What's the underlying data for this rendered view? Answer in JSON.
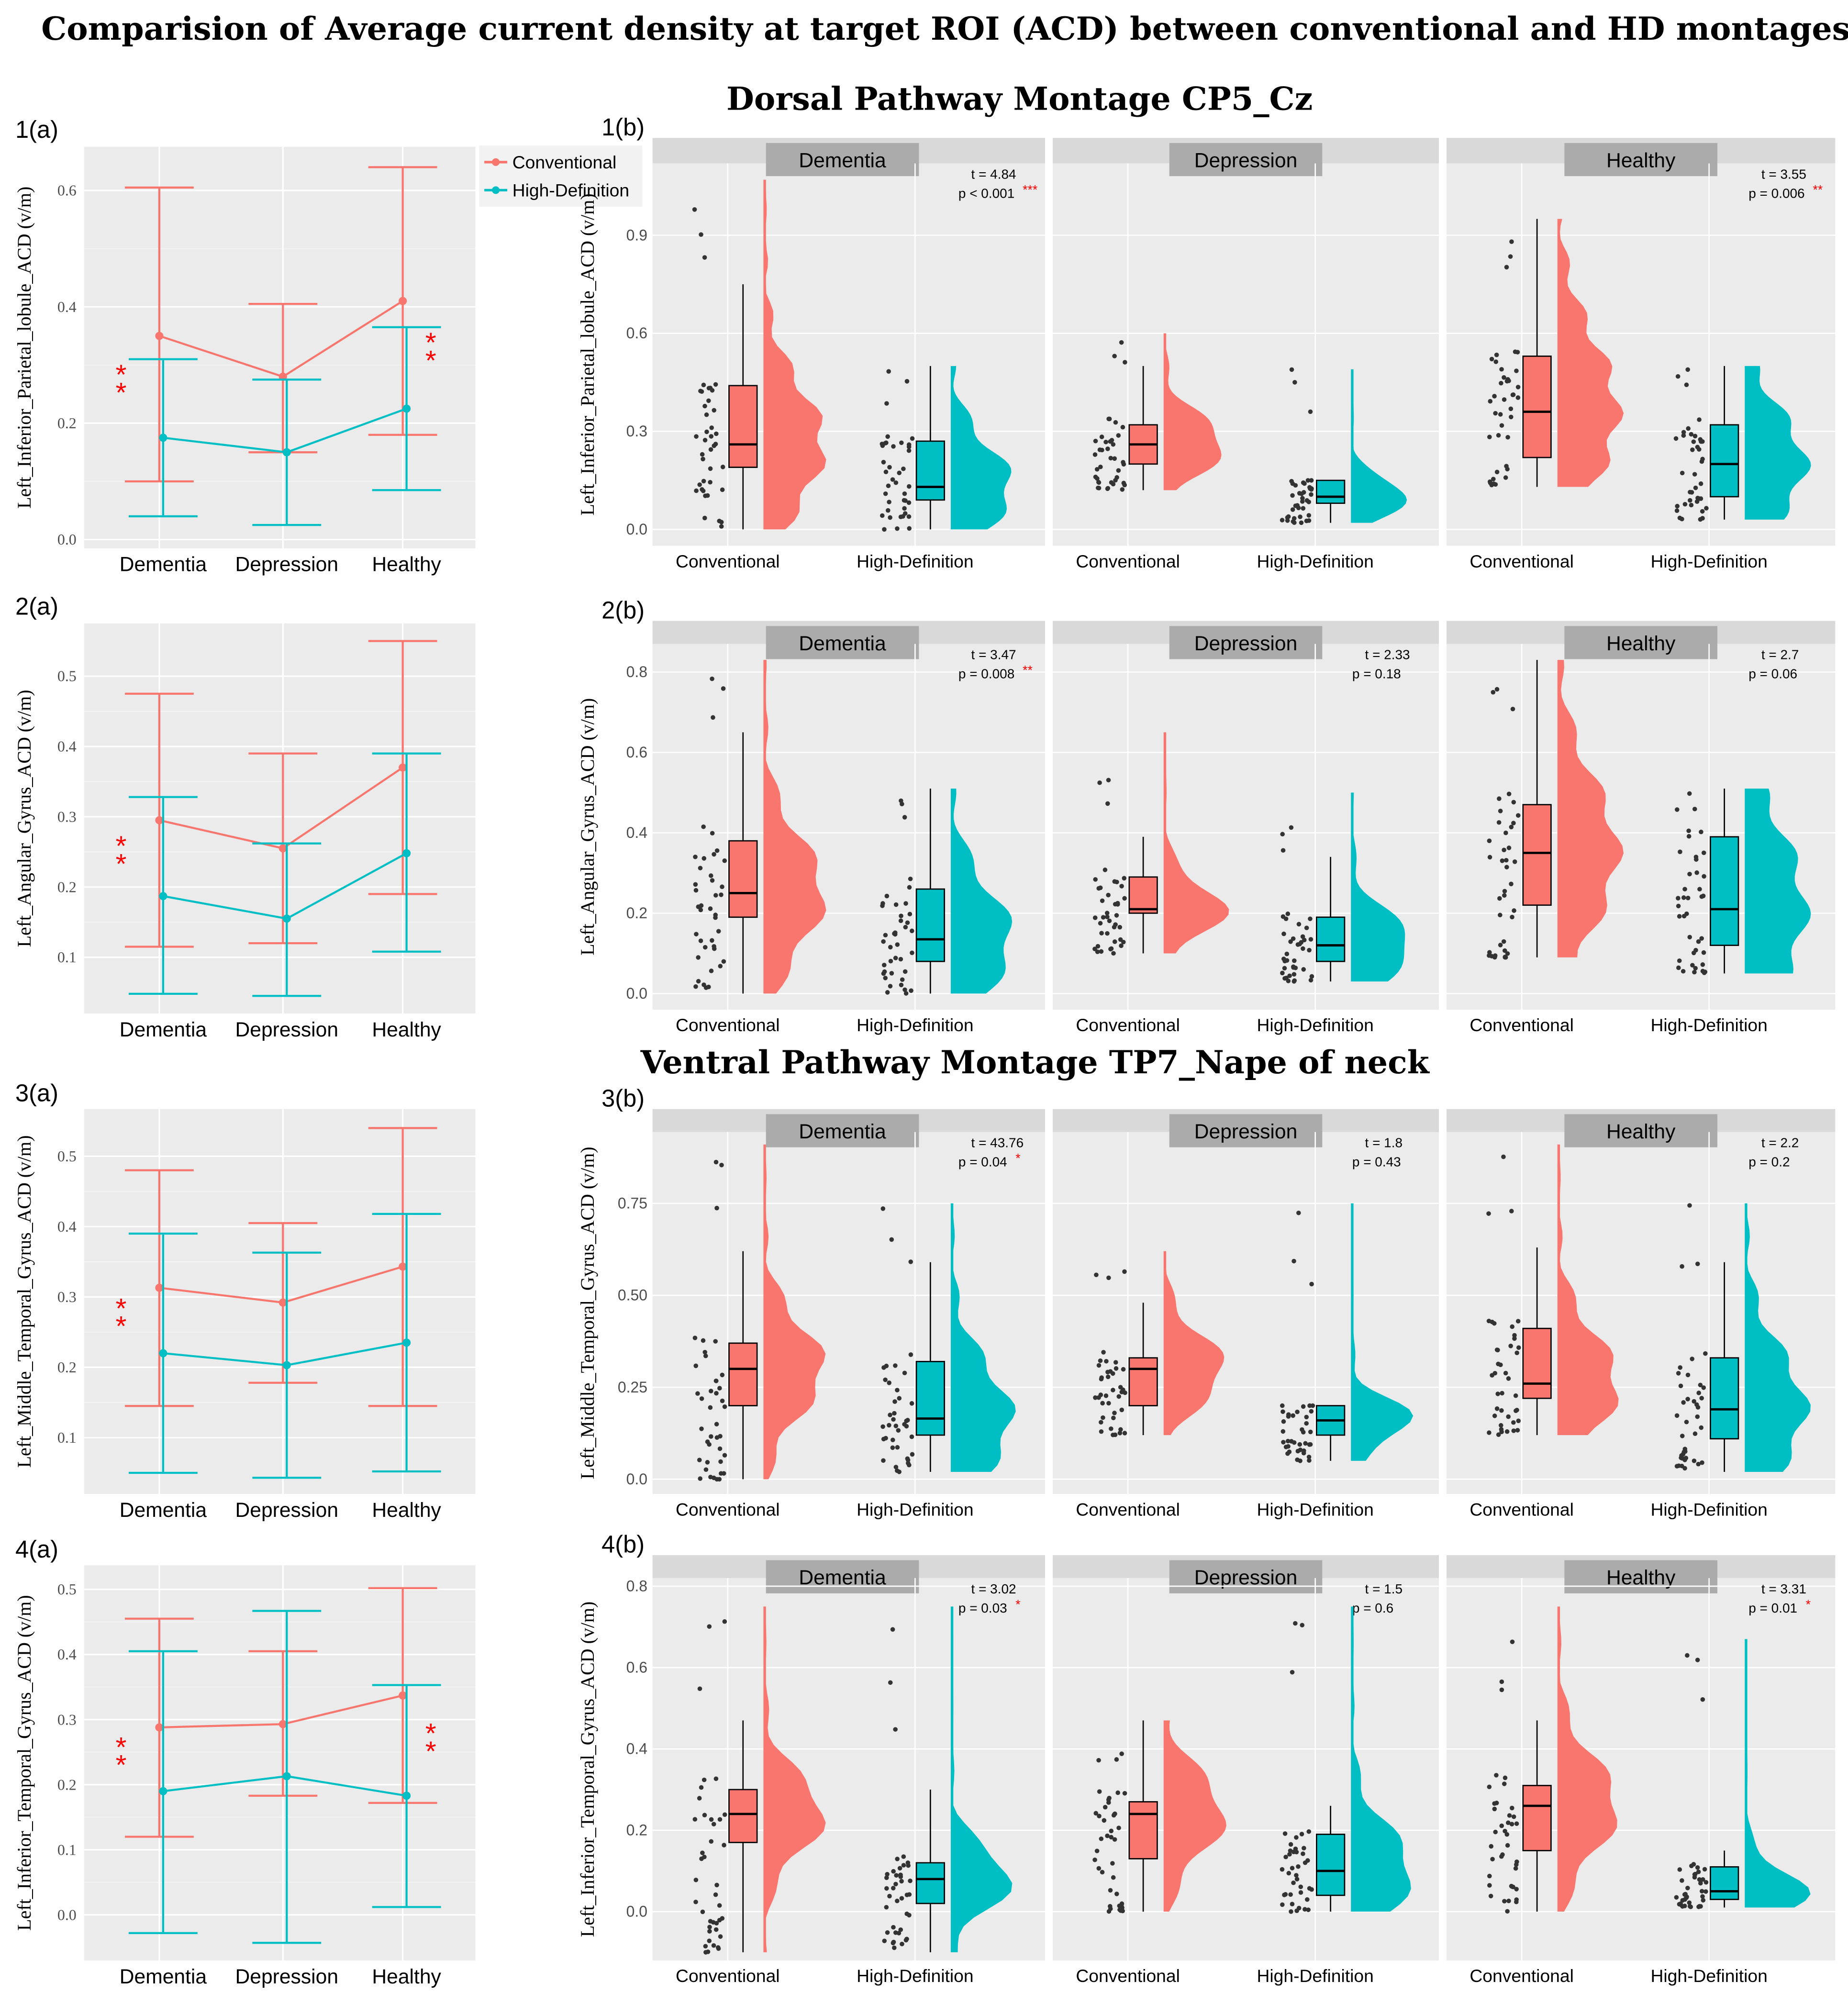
{
  "title": "Comparision of Average current density at target ROI (ACD)  between conventional and HD montages",
  "section_titles": [
    "Dorsal Pathway Montage CP5_Cz",
    "Ventral Pathway Montage TP7_Nape of neck"
  ],
  "colors": {
    "conventional": "#F8766D",
    "high_definition": "#00BFC4",
    "panel_bg": "#EBEBEB",
    "strip_bg": "#D9D9D9",
    "strip_label_bg": "#ABABAB",
    "significance": "#FF0000"
  },
  "legend": {
    "items": [
      "Conventional",
      "High-Definition"
    ]
  },
  "chart_data": [
    {
      "type": "line",
      "panel": "1(a)",
      "ylabel": "Left_Inferior_Parietal_lobule_ACD (v/m)",
      "ylim": [
        -0.015,
        0.675
      ],
      "yticks": [
        0,
        0.2,
        0.4,
        0.6
      ],
      "yticklabels": [
        "0.0",
        "0.2",
        "0.4",
        "0.6"
      ],
      "categories": [
        "Dementia",
        "Depression",
        "Healthy"
      ],
      "series": [
        {
          "name": "Conventional",
          "mean": [
            0.35,
            0.28,
            0.41
          ],
          "lower": [
            0.1,
            0.15,
            0.18
          ],
          "upper": [
            0.605,
            0.405,
            0.64
          ]
        },
        {
          "name": "High-Definition",
          "mean": [
            0.175,
            0.15,
            0.225
          ],
          "lower": [
            0.04,
            0.025,
            0.085
          ],
          "upper": [
            0.31,
            0.275,
            0.365
          ]
        }
      ],
      "significance": [
        {
          "category": "Dementia",
          "mark": "**"
        },
        {
          "category": "Healthy",
          "mark": "**"
        }
      ]
    },
    {
      "type": "box+violin",
      "panel": "1(b)",
      "ylabel": "Left_Inferior_Parietal_lobule_ACD (v/m)",
      "ylim": [
        -0.05,
        1.12
      ],
      "yticks": [
        0,
        0.3,
        0.6,
        0.9
      ],
      "yticklabels": [
        "0.0",
        "0.3",
        "0.6",
        "0.9"
      ],
      "categories": [
        "Conventional",
        "High-Definition"
      ],
      "facets": [
        {
          "name": "Dementia",
          "t": "t = 4.84",
          "p": "p < 0.001",
          "sig": "***",
          "boxes": [
            [
              0,
              0.19,
              0.26,
              0.44,
              0.75,
              1.07
            ],
            [
              0,
              0.09,
              0.13,
              0.27,
              0.5,
              0.5
            ]
          ]
        },
        {
          "name": "Depression",
          "t": "",
          "p": "",
          "sig": "",
          "boxes": [
            [
              0.12,
              0.2,
              0.26,
              0.32,
              0.5,
              0.6
            ],
            [
              0.02,
              0.08,
              0.1,
              0.15,
              0.15,
              0.49
            ]
          ]
        },
        {
          "name": "Healthy",
          "t": "t = 3.55",
          "p": "p = 0.006",
          "sig": "**",
          "boxes": [
            [
              0.13,
              0.22,
              0.36,
              0.53,
              0.95,
              0.95
            ],
            [
              0.03,
              0.1,
              0.2,
              0.32,
              0.5,
              0.5
            ]
          ]
        }
      ]
    },
    {
      "type": "line",
      "panel": "2(a)",
      "ylabel": "Left_Angular_Gyrus_ACD (v/m)",
      "ylim": [
        0.02,
        0.575
      ],
      "yticks": [
        0.1,
        0.2,
        0.3,
        0.4,
        0.5
      ],
      "yticklabels": [
        "0.1",
        "0.2",
        "0.3",
        "0.4",
        "0.5"
      ],
      "categories": [
        "Dementia",
        "Depression",
        "Healthy"
      ],
      "series": [
        {
          "name": "Conventional",
          "mean": [
            0.295,
            0.255,
            0.37
          ],
          "lower": [
            0.115,
            0.12,
            0.19
          ],
          "upper": [
            0.475,
            0.39,
            0.55
          ]
        },
        {
          "name": "High-Definition",
          "mean": [
            0.187,
            0.155,
            0.248
          ],
          "lower": [
            0.048,
            0.045,
            0.108
          ],
          "upper": [
            0.328,
            0.262,
            0.39
          ]
        }
      ],
      "significance": [
        {
          "category": "Dementia",
          "mark": "**"
        }
      ]
    },
    {
      "type": "box+violin",
      "panel": "2(b)",
      "ylabel": "Left_Angular_Gyrus_ACD (v/m)",
      "ylim": [
        -0.04,
        0.87
      ],
      "yticks": [
        0,
        0.2,
        0.4,
        0.6,
        0.8
      ],
      "yticklabels": [
        "0.0",
        "0.2",
        "0.4",
        "0.6",
        "0.8"
      ],
      "categories": [
        "Conventional",
        "High-Definition"
      ],
      "facets": [
        {
          "name": "Dementia",
          "t": "t = 3.47",
          "p": "p = 0.008",
          "sig": "**",
          "boxes": [
            [
              0,
              0.19,
              0.25,
              0.38,
              0.65,
              0.83
            ],
            [
              0,
              0.08,
              0.135,
              0.26,
              0.51,
              0.51
            ]
          ]
        },
        {
          "name": "Depression",
          "t": "t = 2.33",
          "p": "p = 0.18",
          "sig": "",
          "boxes": [
            [
              0.1,
              0.2,
              0.21,
              0.29,
              0.39,
              0.65
            ],
            [
              0.03,
              0.08,
              0.12,
              0.19,
              0.34,
              0.5
            ]
          ]
        },
        {
          "name": "Healthy",
          "t": "t = 2.7",
          "p": "p = 0.06",
          "sig": "",
          "boxes": [
            [
              0.09,
              0.22,
              0.35,
              0.47,
              0.83,
              0.83
            ],
            [
              0.05,
              0.12,
              0.21,
              0.39,
              0.51,
              0.51
            ]
          ]
        }
      ]
    },
    {
      "type": "line",
      "panel": "3(a)",
      "ylabel": "Left_Middle_Temporal_Gyrus_ACD (v/m)",
      "ylim": [
        0.02,
        0.567
      ],
      "yticks": [
        0.1,
        0.2,
        0.3,
        0.4,
        0.5
      ],
      "yticklabels": [
        "0.1",
        "0.2",
        "0.3",
        "0.4",
        "0.5"
      ],
      "categories": [
        "Dementia",
        "Depression",
        "Healthy"
      ],
      "series": [
        {
          "name": "Conventional",
          "mean": [
            0.313,
            0.292,
            0.343
          ],
          "lower": [
            0.145,
            0.178,
            0.145
          ],
          "upper": [
            0.48,
            0.405,
            0.54
          ]
        },
        {
          "name": "High-Definition",
          "mean": [
            0.22,
            0.203,
            0.235
          ],
          "lower": [
            0.05,
            0.043,
            0.052
          ],
          "upper": [
            0.39,
            0.363,
            0.418
          ]
        }
      ],
      "significance": [
        {
          "category": "Dementia",
          "mark": "**"
        }
      ]
    },
    {
      "type": "box+violin",
      "panel": "3(b)",
      "ylabel": "Left_Middle_Temporal_Gyrus_ACD (v/m)",
      "ylim": [
        -0.04,
        0.944
      ],
      "yticks": [
        0,
        0.25,
        0.5,
        0.75
      ],
      "yticklabels": [
        "0.0",
        "0.25",
        "0.50",
        "0.75"
      ],
      "categories": [
        "Conventional",
        "High-Definition"
      ],
      "facets": [
        {
          "name": "Dementia",
          "t": "t = 43.76",
          "p": "p = 0.04",
          "sig": "*",
          "boxes": [
            [
              0,
              0.2,
              0.3,
              0.37,
              0.62,
              0.91
            ],
            [
              0.02,
              0.12,
              0.165,
              0.32,
              0.59,
              0.75
            ]
          ]
        },
        {
          "name": "Depression",
          "t": "t = 1.8",
          "p": "p = 0.43",
          "sig": "",
          "boxes": [
            [
              0.12,
              0.2,
              0.3,
              0.33,
              0.48,
              0.62
            ],
            [
              0.05,
              0.12,
              0.16,
              0.2,
              0.2,
              0.75
            ]
          ]
        },
        {
          "name": "Healthy",
          "t": "t = 2.2",
          "p": "p = 0.2",
          "sig": "",
          "boxes": [
            [
              0.12,
              0.22,
              0.26,
              0.41,
              0.63,
              0.91
            ],
            [
              0.02,
              0.11,
              0.19,
              0.33,
              0.59,
              0.75
            ]
          ]
        }
      ]
    },
    {
      "type": "line",
      "panel": "4(a)",
      "ylabel": "Left_Inferior_Temporal_Gyrus_ACD (v/m)",
      "ylim": [
        -0.07,
        0.537
      ],
      "yticks": [
        0,
        0.1,
        0.2,
        0.3,
        0.4,
        0.5
      ],
      "yticklabels": [
        "0.0",
        "0.1",
        "0.2",
        "0.3",
        "0.4",
        "0.5"
      ],
      "categories": [
        "Dementia",
        "Depression",
        "Healthy"
      ],
      "series": [
        {
          "name": "Conventional",
          "mean": [
            0.288,
            0.293,
            0.337
          ],
          "lower": [
            0.12,
            0.183,
            0.172
          ],
          "upper": [
            0.455,
            0.405,
            0.502
          ]
        },
        {
          "name": "High-Definition",
          "mean": [
            0.19,
            0.213,
            0.183
          ],
          "lower": [
            -0.028,
            -0.043,
            0.012
          ],
          "upper": [
            0.405,
            0.467,
            0.353
          ]
        }
      ],
      "significance": [
        {
          "category": "Dementia",
          "mark": "**"
        },
        {
          "category": "Healthy",
          "mark": "**"
        }
      ]
    },
    {
      "type": "box+violin",
      "panel": "4(b)",
      "ylabel": "Left_Inferior_Temporal_Gyrus_ACD (v/m)",
      "ylim": [
        -0.12,
        0.82
      ],
      "yticks": [
        0,
        0.2,
        0.4,
        0.6,
        0.8
      ],
      "yticklabels": [
        "0.0",
        "0.2",
        "0.4",
        "0.6",
        "0.8"
      ],
      "categories": [
        "Conventional",
        "High-Definition"
      ],
      "facets": [
        {
          "name": "Dementia",
          "t": "t = 3.02",
          "p": "p = 0.03",
          "sig": "*",
          "boxes": [
            [
              -0.1,
              0.17,
              0.24,
              0.3,
              0.47,
              0.75
            ],
            [
              -0.1,
              0.02,
              0.08,
              0.12,
              0.3,
              0.75
            ]
          ]
        },
        {
          "name": "Depression",
          "t": "t = 1.5",
          "p": "p = 0.6",
          "sig": "",
          "boxes": [
            [
              0,
              0.13,
              0.24,
              0.27,
              0.47,
              0.47
            ],
            [
              0,
              0.04,
              0.1,
              0.19,
              0.26,
              0.75
            ]
          ]
        },
        {
          "name": "Healthy",
          "t": "t = 3.31",
          "p": "p = 0.01",
          "sig": "*",
          "boxes": [
            [
              0,
              0.15,
              0.26,
              0.31,
              0.47,
              0.75
            ],
            [
              0.01,
              0.03,
              0.05,
              0.11,
              0.15,
              0.67
            ]
          ]
        }
      ]
    }
  ]
}
